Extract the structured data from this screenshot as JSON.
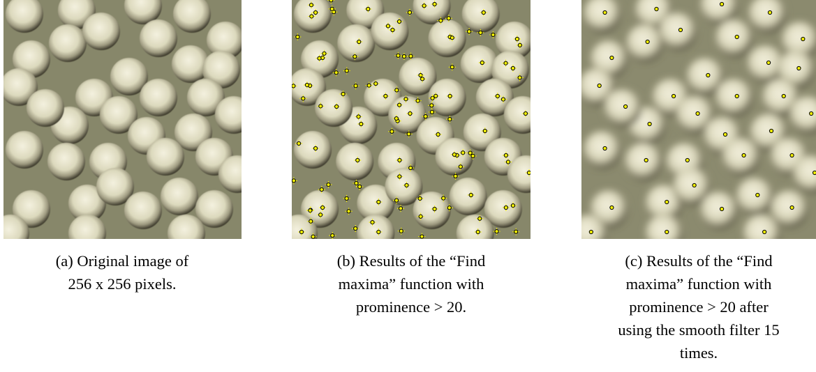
{
  "figures": [
    {
      "caption_lines": [
        "(a) Original image of",
        "256 x 256 pixels."
      ]
    },
    {
      "caption_lines": [
        "(b) Results of the “Find",
        "maxima” function with",
        "prominence > 20."
      ]
    },
    {
      "caption_lines": [
        "(c) Results of the “Find",
        "maxima” function with",
        "prominence > 20 after",
        "using the smooth filter 15",
        "times."
      ]
    }
  ]
}
